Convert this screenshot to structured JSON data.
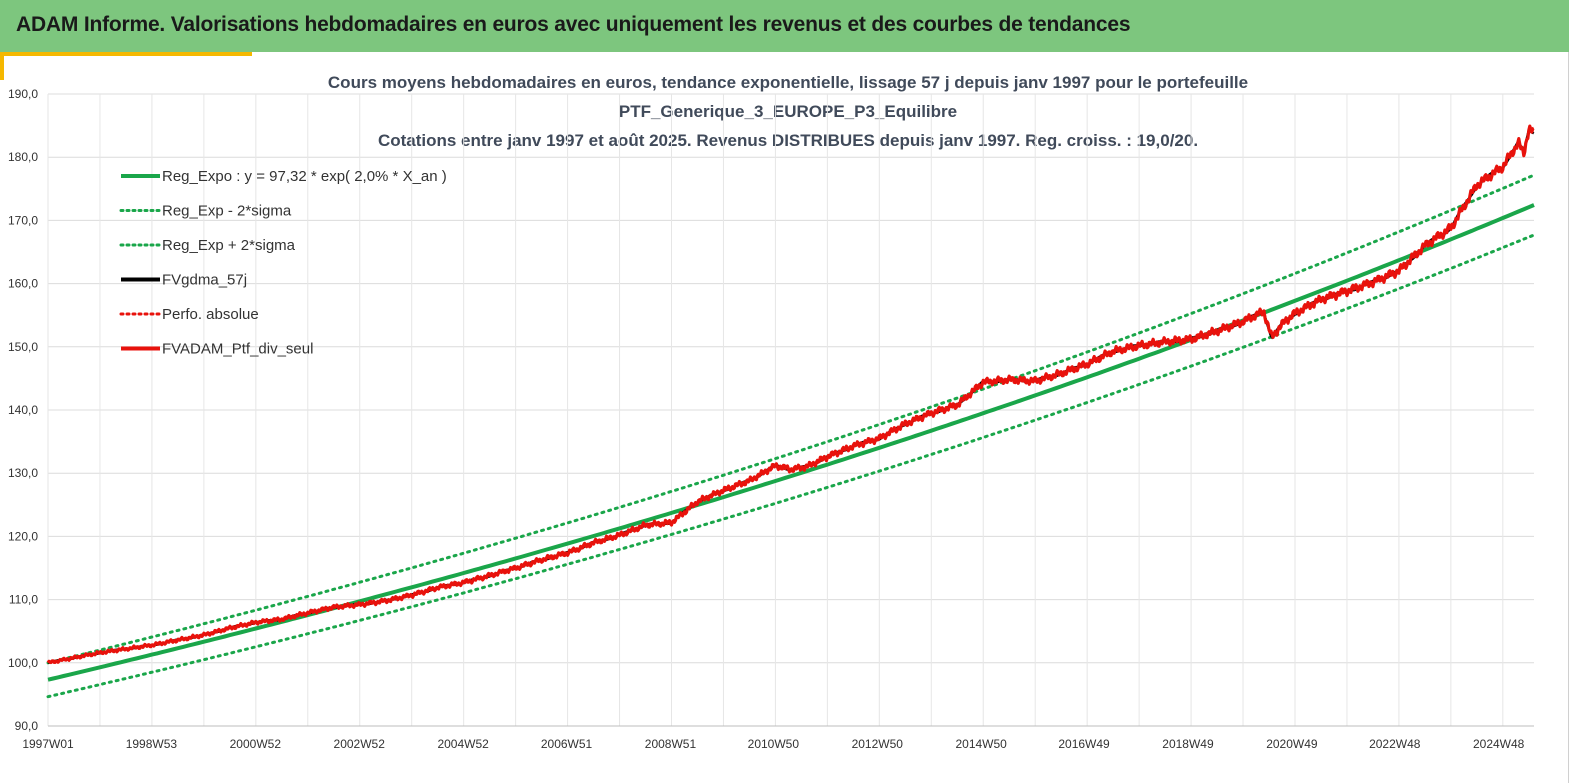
{
  "banner": {
    "title": "ADAM Informe. Valorisations hebdomadaires en euros avec uniquement les revenus et des courbes de tendances"
  },
  "colors": {
    "banner_bg": "#7dc67e",
    "accent": "#f5b800",
    "trend_green": "#1aa64a",
    "portfolio_red": "#e8120c",
    "smooth_black": "#000000"
  },
  "chart_data": {
    "type": "line",
    "title_lines": [
      "Cours moyens hebdomadaires  en euros, tendance exponentielle, lissage 57 j depuis janv 1997 pour le portefeuille",
      "PTF_Generique_3_EUROPE_P3_Equilibre",
      "Cotations entre janv 1997 et août 2025. Revenus DISTRIBUES depuis janv 1997. Reg. croiss. : 19,0/20."
    ],
    "xlabel": "",
    "ylabel": "",
    "ylim": [
      90,
      190
    ],
    "x_range_years": [
      1997.0,
      2025.6
    ],
    "y_ticks": [
      "90,0",
      "100,0",
      "110,0",
      "120,0",
      "130,0",
      "140,0",
      "150,0",
      "160,0",
      "170,0",
      "180,0",
      "190,0"
    ],
    "x_ticks": [
      {
        "label": "1997W01",
        "year": 1997.0
      },
      {
        "label": "1998W53",
        "year": 1998.99
      },
      {
        "label": "2000W52",
        "year": 2000.99
      },
      {
        "label": "2002W52",
        "year": 2002.99
      },
      {
        "label": "2004W52",
        "year": 2004.99
      },
      {
        "label": "2006W51",
        "year": 2006.98
      },
      {
        "label": "2008W51",
        "year": 2008.98
      },
      {
        "label": "2010W50",
        "year": 2010.96
      },
      {
        "label": "2012W50",
        "year": 2012.96
      },
      {
        "label": "2014W50",
        "year": 2014.96
      },
      {
        "label": "2016W49",
        "year": 2016.94
      },
      {
        "label": "2018W49",
        "year": 2018.94
      },
      {
        "label": "2020W49",
        "year": 2020.94
      },
      {
        "label": "2022W48",
        "year": 2022.92
      },
      {
        "label": "2024W48",
        "year": 2024.92
      }
    ],
    "grid": true,
    "legend_position": "top-left",
    "regression": {
      "a": 97.32,
      "rate": 0.02,
      "sigma_factor": 0.0275
    },
    "series": [
      {
        "name": "Reg_Expo : y = 97,32 * exp( 2,0% *  X_an )",
        "color": "#1aa64a",
        "style": "solid",
        "role": "trend"
      },
      {
        "name": "Reg_Exp - 2*sigma",
        "color": "#1aa64a",
        "style": "dotted",
        "role": "lower"
      },
      {
        "name": "Reg_Exp + 2*sigma",
        "color": "#1aa64a",
        "style": "dotted",
        "role": "upper"
      },
      {
        "name": "FVgdma_57j",
        "color": "#000000",
        "style": "solid",
        "role": "smooth"
      },
      {
        "name": "Perfo. absolue",
        "color": "#e8120c",
        "style": "dotted",
        "role": "perf"
      },
      {
        "name": "FVADAM_Ptf_div_seul",
        "color": "#e8120c",
        "style": "solid",
        "role": "portfolio",
        "points": [
          [
            1997.0,
            100.0
          ],
          [
            1997.5,
            100.8
          ],
          [
            1998.0,
            101.6
          ],
          [
            1998.5,
            102.2
          ],
          [
            1999.0,
            102.8
          ],
          [
            1999.5,
            103.6
          ],
          [
            2000.0,
            104.4
          ],
          [
            2000.5,
            105.5
          ],
          [
            2001.0,
            106.4
          ],
          [
            2001.5,
            106.9
          ],
          [
            2002.0,
            107.9
          ],
          [
            2002.5,
            108.8
          ],
          [
            2003.0,
            109.2
          ],
          [
            2003.5,
            109.8
          ],
          [
            2004.0,
            110.7
          ],
          [
            2004.5,
            111.9
          ],
          [
            2005.0,
            112.7
          ],
          [
            2005.5,
            113.8
          ],
          [
            2006.0,
            115.0
          ],
          [
            2006.5,
            116.3
          ],
          [
            2007.0,
            117.4
          ],
          [
            2007.5,
            119.0
          ],
          [
            2008.0,
            120.2
          ],
          [
            2008.5,
            121.8
          ],
          [
            2009.0,
            122.2
          ],
          [
            2009.5,
            125.5
          ],
          [
            2010.0,
            127.3
          ],
          [
            2010.5,
            128.8
          ],
          [
            2011.0,
            131.2
          ],
          [
            2011.3,
            130.6
          ],
          [
            2011.6,
            131.0
          ],
          [
            2012.0,
            132.6
          ],
          [
            2012.5,
            134.3
          ],
          [
            2013.0,
            135.5
          ],
          [
            2013.5,
            137.8
          ],
          [
            2014.0,
            139.5
          ],
          [
            2014.5,
            140.8
          ],
          [
            2015.0,
            144.4
          ],
          [
            2015.5,
            144.8
          ],
          [
            2016.0,
            144.6
          ],
          [
            2016.5,
            145.8
          ],
          [
            2017.0,
            147.3
          ],
          [
            2017.5,
            149.3
          ],
          [
            2018.0,
            150.2
          ],
          [
            2018.5,
            150.8
          ],
          [
            2019.0,
            151.2
          ],
          [
            2019.5,
            152.5
          ],
          [
            2020.0,
            154.0
          ],
          [
            2020.4,
            155.6
          ],
          [
            2020.55,
            151.5
          ],
          [
            2020.8,
            154.0
          ],
          [
            2021.0,
            155.3
          ],
          [
            2021.5,
            157.5
          ],
          [
            2022.0,
            158.8
          ],
          [
            2022.5,
            160.2
          ],
          [
            2023.0,
            162.0
          ],
          [
            2023.5,
            166.0
          ],
          [
            2024.0,
            168.8
          ],
          [
            2024.5,
            175.6
          ],
          [
            2025.0,
            178.5
          ],
          [
            2025.3,
            182.3
          ],
          [
            2025.4,
            180.6
          ],
          [
            2025.5,
            184.3
          ],
          [
            2025.6,
            184.0
          ]
        ]
      }
    ]
  }
}
